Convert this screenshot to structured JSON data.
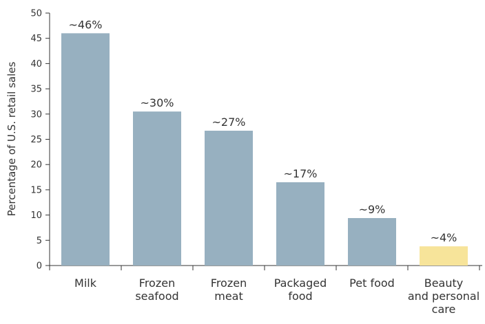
{
  "chart_data": {
    "type": "bar",
    "title": "",
    "xlabel": "",
    "ylabel": "Percentage of U.S. retail sales",
    "ylim": [
      0,
      50
    ],
    "yticks": [
      0,
      5,
      10,
      15,
      20,
      25,
      30,
      35,
      40,
      45,
      50
    ],
    "grid": false,
    "legend": "none",
    "categories": [
      "Milk",
      "Frozen seafood",
      "Frozen meat",
      "Packaged food",
      "Pet food",
      "Beauty and personal care"
    ],
    "category_lines": [
      [
        "Milk"
      ],
      [
        "Frozen",
        "seafood"
      ],
      [
        "Frozen",
        "meat"
      ],
      [
        "Packaged",
        "food"
      ],
      [
        "Pet food"
      ],
      [
        "Beauty",
        "and personal",
        "care"
      ]
    ],
    "values": [
      46,
      30.5,
      26.7,
      16.5,
      9.4,
      3.8
    ],
    "value_labels": [
      "~46%",
      "~30%",
      "~27%",
      "~17%",
      "~9%",
      "~4%"
    ],
    "colors": [
      "#97b0c0",
      "#97b0c0",
      "#97b0c0",
      "#97b0c0",
      "#97b0c0",
      "#f7e49a"
    ],
    "axis_color": "#333333"
  }
}
